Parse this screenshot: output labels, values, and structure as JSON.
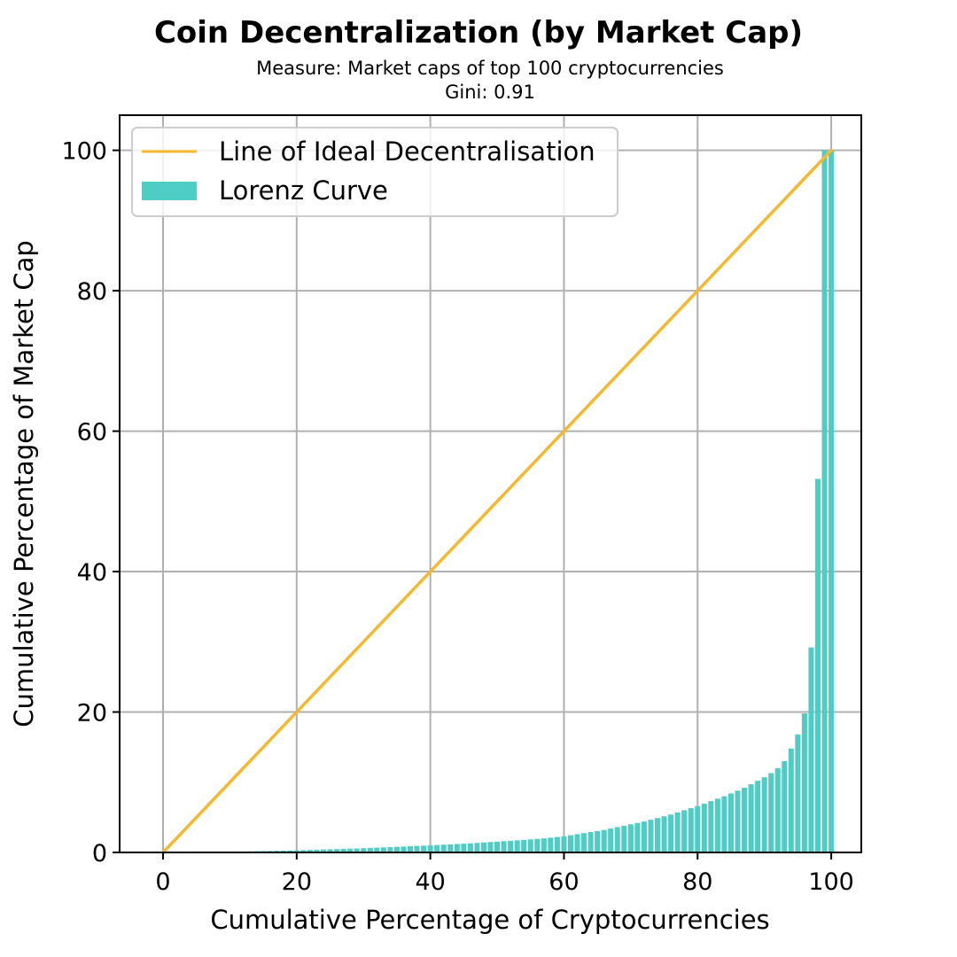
{
  "chart_data": {
    "type": "bar",
    "title": "Coin Decentralization (by Market Cap)",
    "subtitle_lines": [
      "Measure: Market caps of top 100 cryptocurrencies",
      "Gini: 0.91"
    ],
    "xlabel": "Cumulative Percentage of Cryptocurrencies",
    "ylabel": "Cumulative Percentage of Market Cap",
    "xlim": [
      -6.5,
      104.5
    ],
    "ylim": [
      0,
      105
    ],
    "xticks": [
      0,
      20,
      40,
      60,
      80,
      100
    ],
    "yticks": [
      0,
      20,
      40,
      60,
      80,
      100
    ],
    "grid": true,
    "legend_position": "upper-left",
    "colors": {
      "ideal_line": "#f5b82e",
      "lorenz": "#4ecdc4"
    },
    "series": [
      {
        "name": "Line of Ideal Decentralisation",
        "kind": "line",
        "x": [
          0,
          100
        ],
        "y": [
          0,
          100
        ]
      },
      {
        "name": "Lorenz Curve",
        "kind": "bar",
        "x": [
          1,
          2,
          3,
          4,
          5,
          6,
          7,
          8,
          9,
          10,
          11,
          12,
          13,
          14,
          15,
          16,
          17,
          18,
          19,
          20,
          21,
          22,
          23,
          24,
          25,
          26,
          27,
          28,
          29,
          30,
          31,
          32,
          33,
          34,
          35,
          36,
          37,
          38,
          39,
          40,
          41,
          42,
          43,
          44,
          45,
          46,
          47,
          48,
          49,
          50,
          51,
          52,
          53,
          54,
          55,
          56,
          57,
          58,
          59,
          60,
          61,
          62,
          63,
          64,
          65,
          66,
          67,
          68,
          69,
          70,
          71,
          72,
          73,
          74,
          75,
          76,
          77,
          78,
          79,
          80,
          81,
          82,
          83,
          84,
          85,
          86,
          87,
          88,
          89,
          90,
          91,
          92,
          93,
          94,
          95,
          96,
          97,
          98,
          99,
          100
        ],
        "y": [
          0.01,
          0.02,
          0.03,
          0.04,
          0.05,
          0.06,
          0.07,
          0.08,
          0.09,
          0.1,
          0.12,
          0.14,
          0.16,
          0.18,
          0.2,
          0.22,
          0.24,
          0.26,
          0.28,
          0.3,
          0.33,
          0.36,
          0.39,
          0.42,
          0.45,
          0.48,
          0.51,
          0.54,
          0.57,
          0.6,
          0.64,
          0.68,
          0.72,
          0.76,
          0.8,
          0.84,
          0.88,
          0.92,
          0.96,
          1.0,
          1.05,
          1.1,
          1.15,
          1.2,
          1.25,
          1.3,
          1.36,
          1.42,
          1.48,
          1.54,
          1.6,
          1.66,
          1.72,
          1.79,
          1.86,
          1.93,
          2.0,
          2.1,
          2.2,
          2.3,
          2.45,
          2.6,
          2.75,
          2.9,
          3.05,
          3.2,
          3.4,
          3.6,
          3.8,
          4.0,
          4.2,
          4.4,
          4.65,
          4.9,
          5.15,
          5.4,
          5.7,
          6.0,
          6.3,
          6.6,
          6.95,
          7.3,
          7.65,
          8.0,
          8.4,
          8.8,
          9.2,
          9.7,
          10.2,
          10.7,
          11.3,
          12.0,
          13.0,
          14.8,
          16.8,
          19.8,
          29.2,
          53.2,
          100.0,
          100.0
        ]
      }
    ]
  }
}
